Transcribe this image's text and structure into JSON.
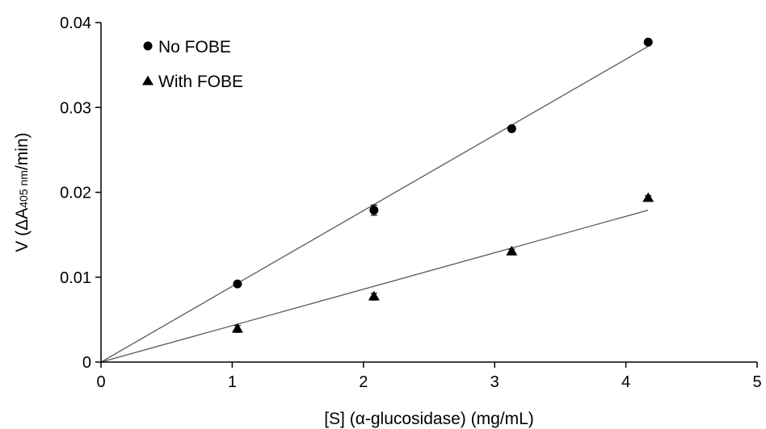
{
  "chart_data": {
    "type": "scatter",
    "xlabel": "[S] (α-glucosidase) (mg/mL)",
    "ylabel_parts": [
      "V (",
      "ΔA",
      "405 nm",
      "/min)"
    ],
    "xlim": [
      0,
      5
    ],
    "ylim": [
      0,
      0.04
    ],
    "x_ticks": [
      "0",
      "1",
      "2",
      "3",
      "4",
      "5"
    ],
    "y_ticks": [
      "0",
      "0.01",
      "0.02",
      "0.03",
      "0.04"
    ],
    "grid": false,
    "legend_position": "top-left",
    "series": [
      {
        "name": "No FOBE",
        "marker": "circle",
        "x": [
          1.04,
          2.08,
          3.13,
          4.17
        ],
        "y": [
          0.0092,
          0.0179,
          0.0275,
          0.0377
        ],
        "error": [
          0.0002,
          0.0006,
          0.0002,
          0.0003
        ],
        "trendline": {
          "x": [
            0,
            4.17
          ],
          "y": [
            0,
            0.0372
          ]
        }
      },
      {
        "name": "With FOBE",
        "marker": "triangle",
        "x": [
          1.04,
          2.08,
          3.13,
          4.17
        ],
        "y": [
          0.0039,
          0.0077,
          0.013,
          0.0193
        ],
        "error": [
          0.0004,
          0.0004,
          0.0003,
          0.0003
        ],
        "trendline": {
          "x": [
            0,
            4.17
          ],
          "y": [
            0,
            0.0179
          ]
        }
      }
    ],
    "colors": {
      "marker": "#000000",
      "trendline": "#595959",
      "axis": "#000000"
    }
  }
}
